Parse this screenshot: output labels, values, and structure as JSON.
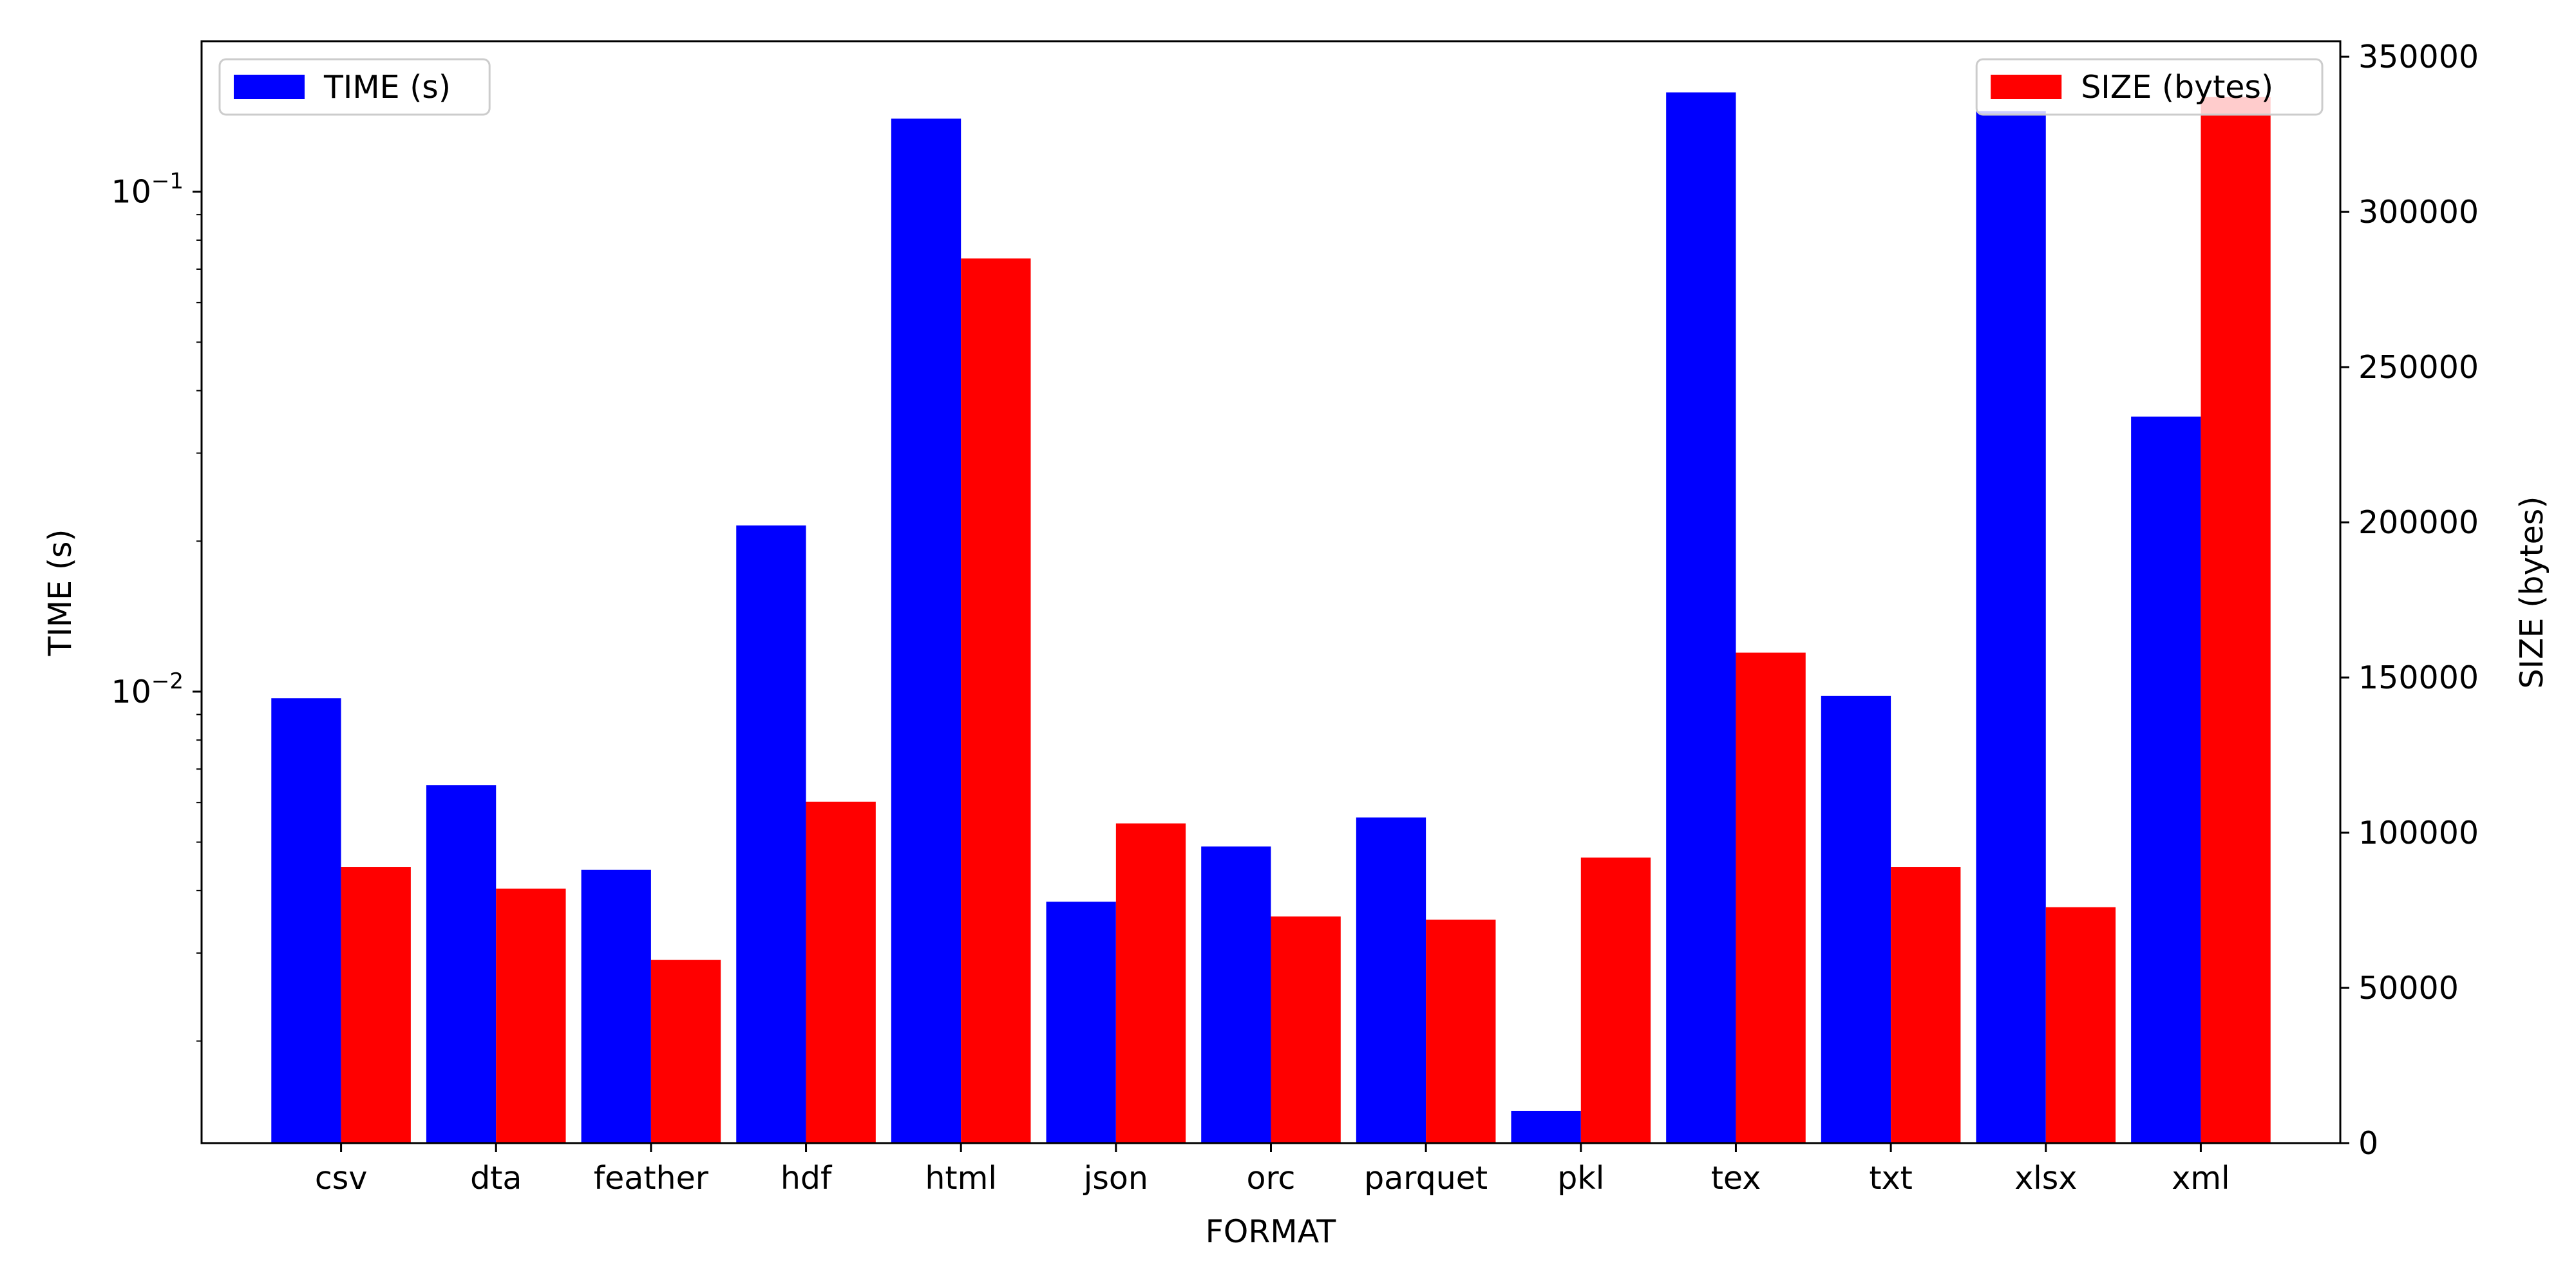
{
  "chart_data": {
    "type": "bar",
    "title": "",
    "xlabel": "FORMAT",
    "categories": [
      "csv",
      "dta",
      "feather",
      "hdf",
      "html",
      "json",
      "orc",
      "parquet",
      "pkl",
      "tex",
      "txt",
      "xlsx",
      "xml"
    ],
    "left_axis": {
      "label": "TIME (s)",
      "scale": "log",
      "range": [
        0.00125,
        0.2
      ],
      "ticks": [
        {
          "value": 0.01,
          "base": "10",
          "exp": "−2"
        },
        {
          "value": 0.1,
          "base": "10",
          "exp": "−1"
        }
      ]
    },
    "right_axis": {
      "label": "SIZE (bytes)",
      "scale": "linear",
      "range": [
        0,
        355000
      ],
      "ticks": [
        {
          "value": 0,
          "label": "0"
        },
        {
          "value": 50000,
          "label": "50000"
        },
        {
          "value": 100000,
          "label": "100000"
        },
        {
          "value": 150000,
          "label": "150000"
        },
        {
          "value": 200000,
          "label": "200000"
        },
        {
          "value": 250000,
          "label": "250000"
        },
        {
          "value": 300000,
          "label": "300000"
        },
        {
          "value": 350000,
          "label": "350000"
        }
      ]
    },
    "series": [
      {
        "name": "TIME (s)",
        "axis": "left",
        "color": "#0000ff",
        "values": [
          0.0097,
          0.0065,
          0.0044,
          0.0215,
          0.14,
          0.0038,
          0.0049,
          0.0056,
          0.00145,
          0.158,
          0.0098,
          0.145,
          0.0355
        ]
      },
      {
        "name": "SIZE (bytes)",
        "axis": "right",
        "color": "#ff0000",
        "values": [
          89000,
          82000,
          59000,
          110000,
          285000,
          103000,
          73000,
          72000,
          92000,
          158000,
          89000,
          76000,
          337000
        ]
      }
    ],
    "legends": [
      {
        "series": "TIME (s)",
        "placement": "top-left"
      },
      {
        "series": "SIZE (bytes)",
        "placement": "top-right"
      }
    ],
    "grid": false
  }
}
